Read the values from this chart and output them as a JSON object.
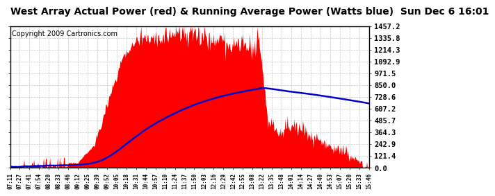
{
  "title": "West Array Actual Power (red) & Running Average Power (Watts blue)  Sun Dec 6 16:01",
  "copyright": "Copyright 2009 Cartronics.com",
  "ymax": 1457.2,
  "yticks": [
    0.0,
    121.4,
    242.9,
    364.3,
    485.7,
    607.2,
    728.6,
    850.0,
    971.5,
    1092.9,
    1214.3,
    1335.8,
    1457.2
  ],
  "xtick_labels": [
    "07:11",
    "07:27",
    "07:41",
    "07:54",
    "08:20",
    "08:33",
    "08:46",
    "09:12",
    "09:25",
    "09:39",
    "09:52",
    "10:05",
    "10:18",
    "10:31",
    "10:44",
    "10:57",
    "11:10",
    "11:24",
    "11:37",
    "11:50",
    "12:03",
    "12:16",
    "12:29",
    "12:42",
    "12:55",
    "13:08",
    "13:22",
    "13:35",
    "13:48",
    "14:01",
    "14:14",
    "14:27",
    "14:40",
    "14:53",
    "15:07",
    "15:20",
    "15:33",
    "15:46"
  ],
  "bg_color": "#ffffff",
  "plot_bg": "#ffffff",
  "grid_color": "#c8c8c8",
  "red_color": "#ff0000",
  "blue_color": "#0000cc",
  "title_fontsize": 10,
  "copyright_fontsize": 7
}
